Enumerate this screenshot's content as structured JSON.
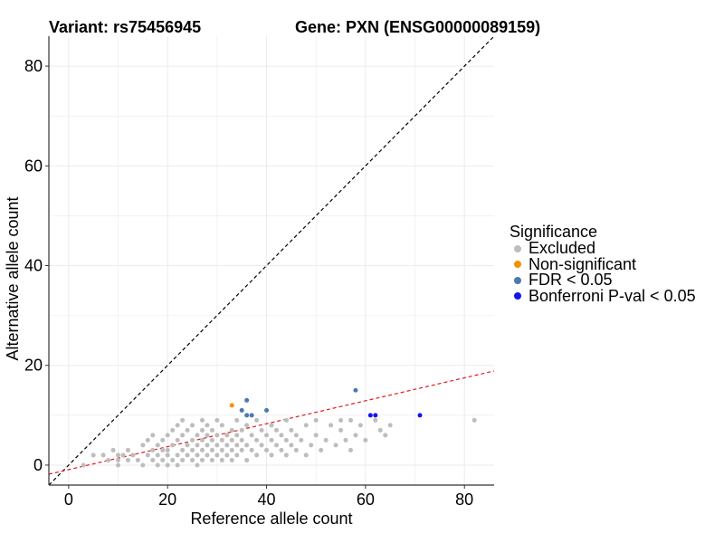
{
  "title_left": "Variant: rs75456945",
  "title_right": "Gene: PXN (ENSG00000089159)",
  "colors": {
    "excluded": "#bdbdbd",
    "non_significant": "#f39200",
    "fdr": "#4a79b0",
    "bonferroni": "#1414ee",
    "diagonal": "#000000",
    "fit": "#e31a1c",
    "grid": "#ebebeb"
  },
  "legend": {
    "title": "Significance",
    "items": [
      {
        "label": "Excluded",
        "color": "#bdbdbd"
      },
      {
        "label": "Non-significant",
        "color": "#f39200"
      },
      {
        "label": "FDR < 0.05",
        "color": "#4a79b0"
      },
      {
        "label": "Bonferroni P-val < 0.05",
        "color": "#1414ee"
      }
    ]
  },
  "chart_data": {
    "type": "scatter",
    "xlabel": "Reference allele count",
    "ylabel": "Alternative allele count",
    "xlim": [
      -4,
      86
    ],
    "ylim": [
      -4,
      86
    ],
    "xticks": [
      0,
      20,
      40,
      60,
      80
    ],
    "yticks": [
      0,
      20,
      40,
      60,
      80
    ],
    "grid": true,
    "reference_lines": [
      {
        "name": "y = x",
        "slope": 1,
        "intercept": 0,
        "style": "dashed",
        "color": "#000000"
      },
      {
        "name": "fit",
        "slope": 0.23,
        "intercept": -0.9,
        "style": "dashed",
        "color": "#e31a1c"
      }
    ],
    "series": [
      {
        "name": "Excluded",
        "color": "#bdbdbd",
        "points": [
          [
            3,
            0
          ],
          [
            5,
            2
          ],
          [
            7,
            2
          ],
          [
            8,
            1
          ],
          [
            9,
            3
          ],
          [
            10,
            0
          ],
          [
            10,
            1
          ],
          [
            10,
            2
          ],
          [
            11,
            2
          ],
          [
            12,
            1
          ],
          [
            12,
            3
          ],
          [
            13,
            2
          ],
          [
            14,
            1
          ],
          [
            15,
            4
          ],
          [
            15,
            0
          ],
          [
            16,
            2
          ],
          [
            16,
            5
          ],
          [
            17,
            1
          ],
          [
            17,
            3
          ],
          [
            17,
            6
          ],
          [
            18,
            0
          ],
          [
            18,
            2
          ],
          [
            18,
            4
          ],
          [
            19,
            1
          ],
          [
            19,
            3
          ],
          [
            19,
            5
          ],
          [
            20,
            0
          ],
          [
            20,
            2
          ],
          [
            20,
            3
          ],
          [
            20,
            6
          ],
          [
            21,
            1
          ],
          [
            21,
            4
          ],
          [
            21,
            7
          ],
          [
            22,
            0
          ],
          [
            22,
            2
          ],
          [
            22,
            5
          ],
          [
            22,
            8
          ],
          [
            23,
            1
          ],
          [
            23,
            3
          ],
          [
            23,
            6
          ],
          [
            23,
            9
          ],
          [
            24,
            2
          ],
          [
            24,
            4
          ],
          [
            24,
            7
          ],
          [
            25,
            1
          ],
          [
            25,
            3
          ],
          [
            25,
            5
          ],
          [
            25,
            8
          ],
          [
            26,
            0
          ],
          [
            26,
            2
          ],
          [
            26,
            4
          ],
          [
            26,
            6
          ],
          [
            27,
            1
          ],
          [
            27,
            3
          ],
          [
            27,
            5
          ],
          [
            27,
            7
          ],
          [
            27,
            9
          ],
          [
            28,
            2
          ],
          [
            28,
            4
          ],
          [
            28,
            6
          ],
          [
            28,
            8
          ],
          [
            29,
            1
          ],
          [
            29,
            3
          ],
          [
            29,
            5
          ],
          [
            29,
            7
          ],
          [
            30,
            2
          ],
          [
            30,
            4
          ],
          [
            30,
            6
          ],
          [
            30,
            9
          ],
          [
            31,
            1
          ],
          [
            31,
            3
          ],
          [
            31,
            5
          ],
          [
            31,
            8
          ],
          [
            32,
            2
          ],
          [
            32,
            4
          ],
          [
            32,
            6
          ],
          [
            33,
            1
          ],
          [
            33,
            3
          ],
          [
            33,
            5
          ],
          [
            33,
            7
          ],
          [
            34,
            2
          ],
          [
            34,
            4
          ],
          [
            34,
            6
          ],
          [
            34,
            9
          ],
          [
            35,
            3
          ],
          [
            35,
            5
          ],
          [
            35,
            7
          ],
          [
            36,
            1
          ],
          [
            36,
            4
          ],
          [
            36,
            8
          ],
          [
            37,
            3
          ],
          [
            37,
            6
          ],
          [
            38,
            2
          ],
          [
            38,
            5
          ],
          [
            38,
            9
          ],
          [
            39,
            4
          ],
          [
            39,
            7
          ],
          [
            40,
            3
          ],
          [
            40,
            6
          ],
          [
            41,
            2
          ],
          [
            41,
            5
          ],
          [
            41,
            8
          ],
          [
            42,
            4
          ],
          [
            42,
            7
          ],
          [
            43,
            3
          ],
          [
            43,
            6
          ],
          [
            44,
            2
          ],
          [
            44,
            5
          ],
          [
            44,
            9
          ],
          [
            45,
            4
          ],
          [
            45,
            7
          ],
          [
            46,
            3
          ],
          [
            46,
            6
          ],
          [
            47,
            5
          ],
          [
            48,
            2
          ],
          [
            48,
            8
          ],
          [
            49,
            4
          ],
          [
            50,
            6
          ],
          [
            50,
            9
          ],
          [
            51,
            3
          ],
          [
            52,
            5
          ],
          [
            53,
            8
          ],
          [
            54,
            4
          ],
          [
            55,
            7
          ],
          [
            55,
            9
          ],
          [
            56,
            5
          ],
          [
            57,
            3
          ],
          [
            57,
            9
          ],
          [
            58,
            6
          ],
          [
            59,
            8
          ],
          [
            60,
            5
          ],
          [
            62,
            9
          ],
          [
            63,
            7
          ],
          [
            64,
            6
          ],
          [
            65,
            8
          ],
          [
            82,
            9
          ]
        ]
      },
      {
        "name": "Non-significant",
        "color": "#f39200",
        "points": [
          [
            33,
            12
          ]
        ]
      },
      {
        "name": "FDR < 0.05",
        "color": "#4a79b0",
        "points": [
          [
            35,
            11
          ],
          [
            36,
            10
          ],
          [
            36,
            13
          ],
          [
            37,
            10
          ],
          [
            40,
            11
          ],
          [
            58,
            15
          ]
        ]
      },
      {
        "name": "Bonferroni P-val < 0.05",
        "color": "#1414ee",
        "points": [
          [
            61,
            10
          ],
          [
            62,
            10
          ],
          [
            71,
            10
          ]
        ]
      }
    ]
  }
}
